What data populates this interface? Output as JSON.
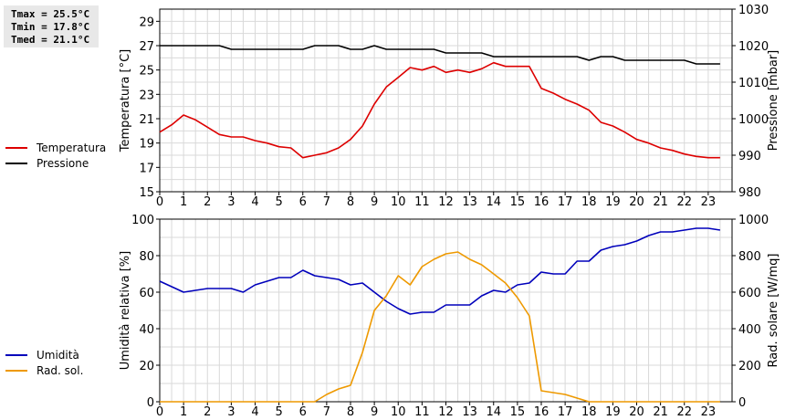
{
  "stats": {
    "tmax": "Tmax = 25.5°C",
    "tmin": "Tmin = 17.8°C",
    "tmed": "Tmed = 21.1°C"
  },
  "chart_data": [
    {
      "type": "line",
      "ylabel": "Temperatura [°C]",
      "y2label": "Pressione [mbar]",
      "xlim": [
        0,
        24
      ],
      "ylim": [
        15,
        30
      ],
      "y2lim": [
        980,
        1030
      ],
      "x_ticks": [
        "0",
        "1",
        "2",
        "3",
        "4",
        "5",
        "6",
        "7",
        "8",
        "9",
        "10",
        "11",
        "12",
        "13",
        "14",
        "15",
        "16",
        "17",
        "18",
        "19",
        "20",
        "21",
        "22",
        "23"
      ],
      "y_ticks": [
        "15",
        "17",
        "19",
        "21",
        "23",
        "25",
        "27",
        "29"
      ],
      "y2_ticks": [
        "980",
        "990",
        "1000",
        "1010",
        "1020",
        "1030"
      ],
      "grid": true,
      "legend_position": "left",
      "series": [
        {
          "name": "Temperatura",
          "axis": "left",
          "color": "#dd0000",
          "x": [
            0,
            0.5,
            1,
            1.5,
            2,
            2.5,
            3,
            3.5,
            4,
            4.5,
            5,
            5.5,
            6,
            6.5,
            7,
            7.5,
            8,
            8.5,
            9,
            9.5,
            10,
            10.5,
            11,
            11.5,
            12,
            12.5,
            13,
            13.5,
            14,
            14.5,
            15,
            15.5,
            16,
            16.5,
            17,
            17.5,
            18,
            18.5,
            19,
            19.5,
            20,
            20.5,
            21,
            21.5,
            22,
            22.5,
            23,
            23.5
          ],
          "y": [
            19.9,
            20.5,
            21.3,
            20.9,
            20.3,
            19.7,
            19.5,
            19.5,
            19.2,
            19.0,
            18.7,
            18.6,
            17.8,
            18.0,
            18.2,
            18.6,
            19.3,
            20.4,
            22.2,
            23.6,
            24.4,
            25.2,
            25.0,
            25.3,
            24.8,
            25.0,
            24.8,
            25.1,
            25.6,
            25.3,
            25.3,
            25.3,
            23.5,
            23.1,
            22.6,
            22.2,
            21.7,
            20.7,
            20.4,
            19.9,
            19.3,
            19.0,
            18.6,
            18.4,
            18.1,
            17.9,
            17.8,
            17.8
          ]
        },
        {
          "name": "Pressione",
          "axis": "right",
          "color": "#000000",
          "x": [
            0,
            0.5,
            1,
            1.5,
            2,
            2.5,
            3,
            3.5,
            4,
            4.5,
            5,
            5.5,
            6,
            6.5,
            7,
            7.5,
            8,
            8.5,
            9,
            9.5,
            10,
            10.5,
            11,
            11.5,
            12,
            12.5,
            13,
            13.5,
            14,
            14.5,
            15,
            15.5,
            16,
            16.5,
            17,
            17.5,
            18,
            18.5,
            19,
            19.5,
            20,
            20.5,
            21,
            21.5,
            22,
            22.5,
            23,
            23.5
          ],
          "y": [
            1020,
            1020,
            1020,
            1020,
            1020,
            1020,
            1019,
            1019,
            1019,
            1019,
            1019,
            1019,
            1019,
            1020,
            1020,
            1020,
            1019,
            1019,
            1020,
            1019,
            1019,
            1019,
            1019,
            1019,
            1018,
            1018,
            1018,
            1018,
            1017,
            1017,
            1017,
            1017,
            1017,
            1017,
            1017,
            1017,
            1016,
            1017,
            1017,
            1016,
            1016,
            1016,
            1016,
            1016,
            1016,
            1015,
            1015,
            1015
          ]
        }
      ]
    },
    {
      "type": "line",
      "ylabel": "Umidità relativa [%]",
      "y2label": "Rad. solare [W/mq]",
      "xlim": [
        0,
        24
      ],
      "ylim": [
        0,
        100
      ],
      "y2lim": [
        0,
        1000
      ],
      "x_ticks": [
        "0",
        "1",
        "2",
        "3",
        "4",
        "5",
        "6",
        "7",
        "8",
        "9",
        "10",
        "11",
        "12",
        "13",
        "14",
        "15",
        "16",
        "17",
        "18",
        "19",
        "20",
        "21",
        "22",
        "23"
      ],
      "y_ticks": [
        "0",
        "20",
        "40",
        "60",
        "80",
        "100"
      ],
      "y2_ticks": [
        "0",
        "200",
        "400",
        "600",
        "800",
        "1000"
      ],
      "grid": true,
      "legend_position": "left",
      "series": [
        {
          "name": "Umidità",
          "axis": "left",
          "color": "#0000bb",
          "x": [
            0,
            0.5,
            1,
            1.5,
            2,
            2.5,
            3,
            3.5,
            4,
            4.5,
            5,
            5.5,
            6,
            6.5,
            7,
            7.5,
            8,
            8.5,
            9,
            9.5,
            10,
            10.5,
            11,
            11.5,
            12,
            12.5,
            13,
            13.5,
            14,
            14.5,
            15,
            15.5,
            16,
            16.5,
            17,
            17.5,
            18,
            18.5,
            19,
            19.5,
            20,
            20.5,
            21,
            21.5,
            22,
            22.5,
            23,
            23.5
          ],
          "y": [
            66,
            63,
            60,
            61,
            62,
            62,
            62,
            60,
            64,
            66,
            68,
            68,
            72,
            69,
            68,
            67,
            64,
            65,
            60,
            55,
            51,
            48,
            49,
            49,
            53,
            53,
            53,
            58,
            61,
            60,
            64,
            65,
            71,
            70,
            70,
            77,
            77,
            83,
            85,
            86,
            88,
            91,
            93,
            93,
            94,
            95,
            95,
            94
          ]
        },
        {
          "name": "Rad. sol.",
          "axis": "right",
          "color": "#ee9900",
          "x": [
            0,
            0.5,
            1,
            1.5,
            2,
            2.5,
            3,
            3.5,
            4,
            4.5,
            5,
            5.5,
            6,
            6.5,
            7,
            7.5,
            8,
            8.5,
            9,
            9.5,
            10,
            10.5,
            11,
            11.5,
            12,
            12.5,
            13,
            13.5,
            14,
            14.5,
            15,
            15.5,
            16,
            16.5,
            17,
            17.5,
            18,
            18.5,
            19,
            19.5,
            20,
            20.5,
            21,
            21.5,
            22,
            22.5,
            23,
            23.5
          ],
          "y": [
            0,
            0,
            0,
            0,
            0,
            0,
            0,
            0,
            0,
            0,
            0,
            0,
            0,
            0,
            40,
            70,
            90,
            270,
            500,
            580,
            690,
            640,
            740,
            780,
            810,
            820,
            780,
            750,
            700,
            650,
            570,
            470,
            60,
            50,
            40,
            20,
            0,
            0,
            0,
            0,
            0,
            0,
            0,
            0,
            0,
            0,
            0,
            0
          ]
        }
      ]
    }
  ]
}
